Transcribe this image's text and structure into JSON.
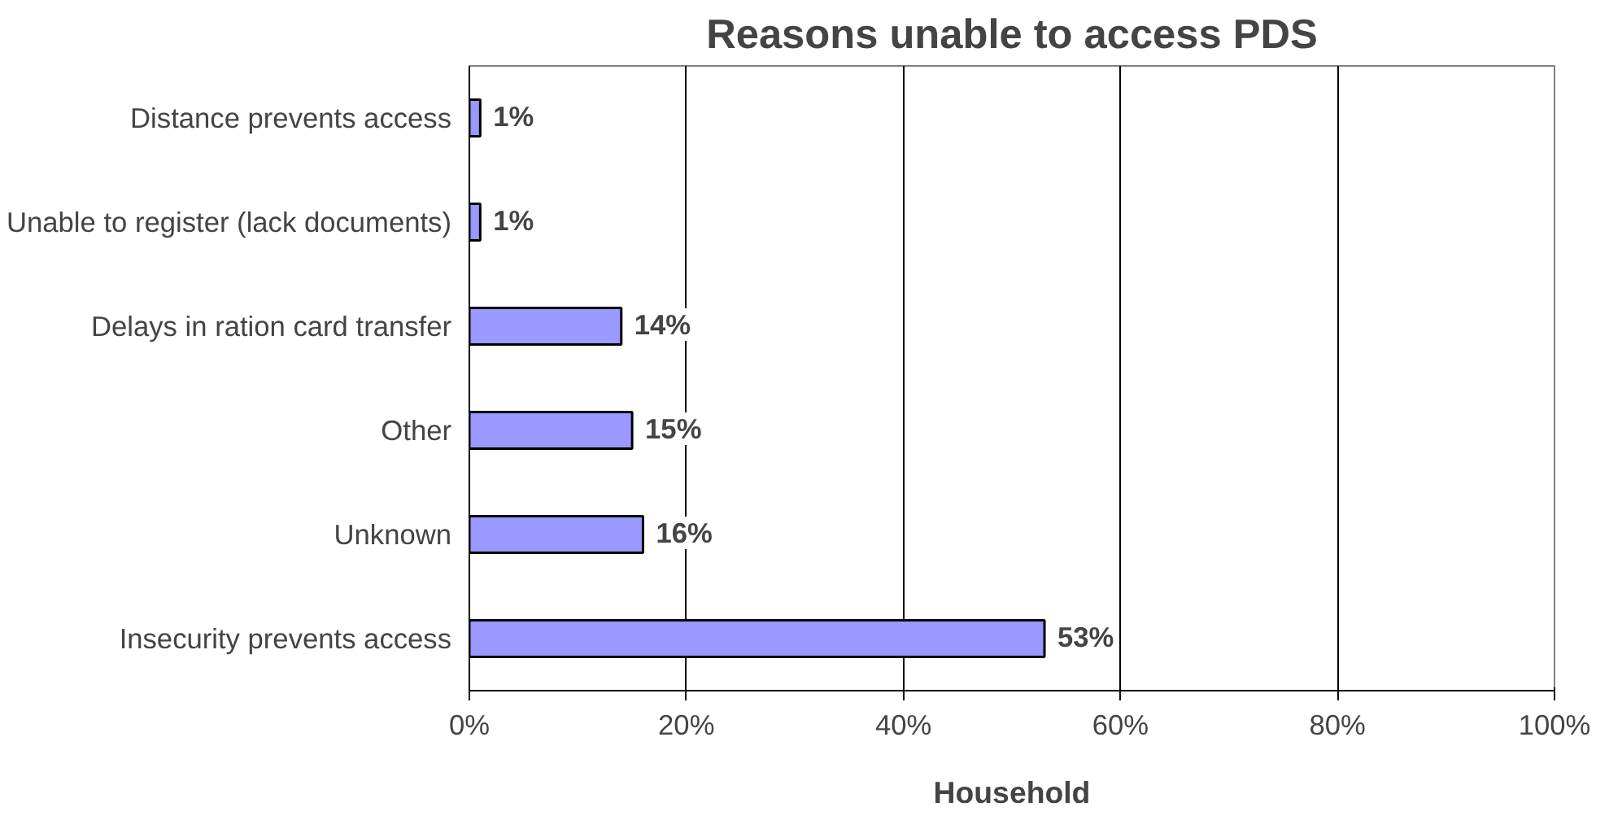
{
  "chart_data": {
    "type": "bar",
    "orientation": "horizontal",
    "title": "Reasons unable to access PDS",
    "xlabel": "Household",
    "categories": [
      "Distance prevents access",
      "Unable to register (lack documents)",
      "Delays in ration card transfer",
      "Other",
      "Unknown",
      "Insecurity prevents access"
    ],
    "values": [
      1,
      1,
      14,
      15,
      16,
      53
    ],
    "color": "#9999ff",
    "value_labels": [
      "1%",
      "1%",
      "14%",
      "15%",
      "16%",
      "53%"
    ],
    "xlim": [
      0,
      100
    ],
    "xticks": [
      {
        "value": 0,
        "label": "0%"
      },
      {
        "value": 20,
        "label": "20%"
      },
      {
        "value": 40,
        "label": "40%"
      },
      {
        "value": 60,
        "label": "60%"
      },
      {
        "value": 80,
        "label": "80%"
      },
      {
        "value": 100,
        "label": "100%"
      }
    ],
    "grid": "x"
  }
}
